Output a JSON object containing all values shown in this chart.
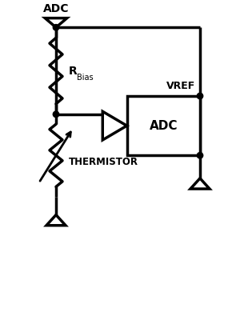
{
  "bg_color": "#ffffff",
  "line_color": "#000000",
  "line_width": 2.5,
  "figsize": [
    3.0,
    4.0
  ],
  "dpi": 100,
  "adc_label": "ADC",
  "rbias_label": "R",
  "rbias_sub": "Bias",
  "vref_label": "VREF",
  "thermistor_label": "THERMISTOR",
  "xlim": [
    0,
    10
  ],
  "ylim": [
    0,
    14
  ]
}
